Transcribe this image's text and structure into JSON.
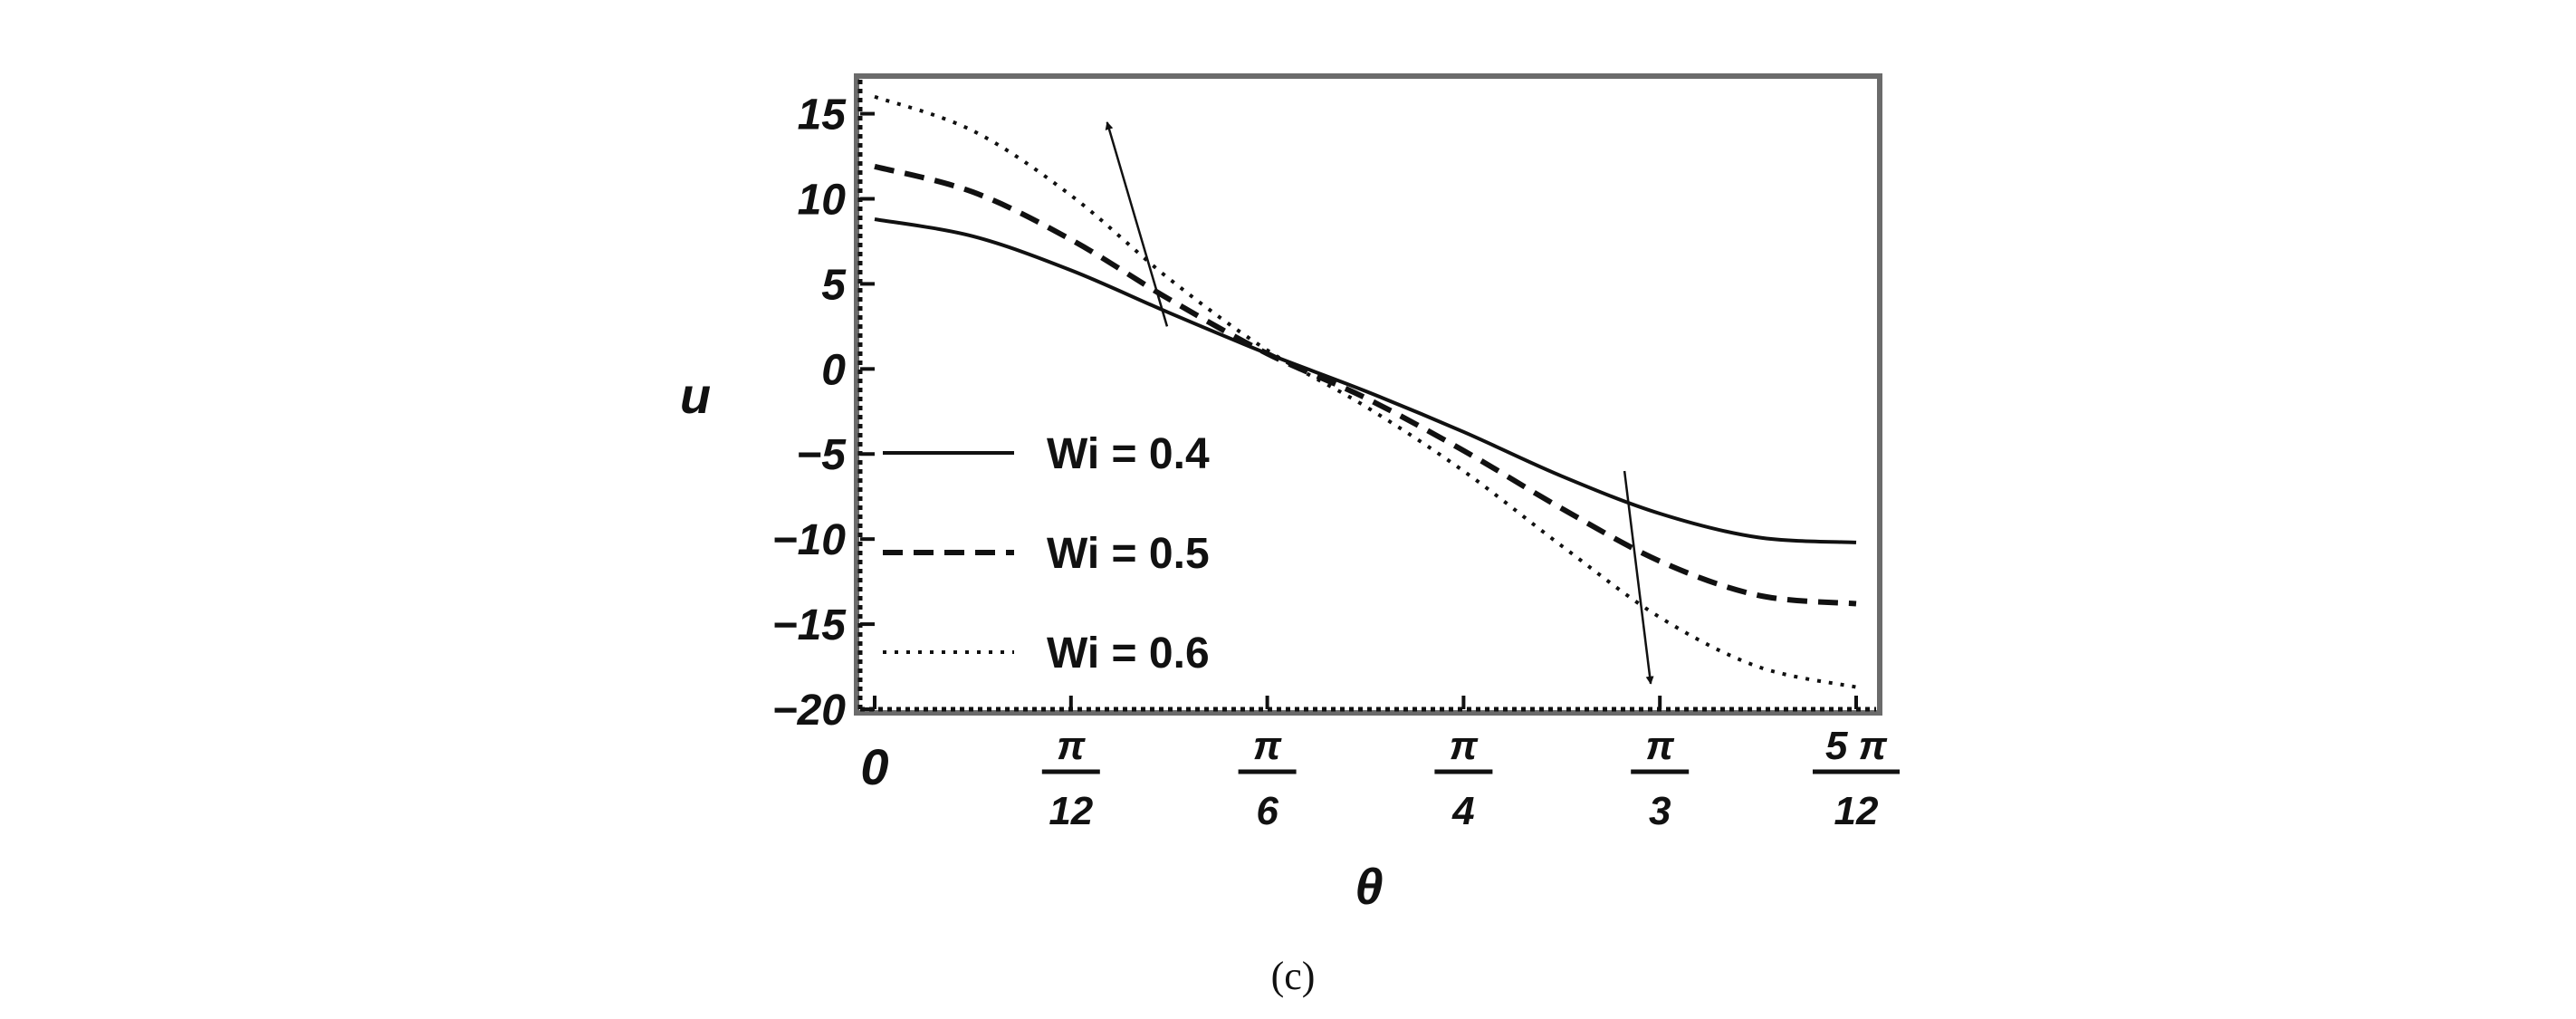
{
  "chart_data": {
    "type": "line",
    "xlabel": "θ",
    "ylabel": "u",
    "xlim": [
      0,
      1.309
    ],
    "ylim": [
      -20,
      17
    ],
    "grid": false,
    "legend_placement": "left",
    "yticks": [
      15,
      10,
      5,
      0,
      -5,
      -10,
      -15,
      -20
    ],
    "xticks": [
      {
        "value": 0,
        "num": "0",
        "den": ""
      },
      {
        "value": 0.2618,
        "num": "π",
        "den": "12"
      },
      {
        "value": 0.5236,
        "num": "π",
        "den": "6"
      },
      {
        "value": 0.7854,
        "num": "π",
        "den": "4"
      },
      {
        "value": 1.0472,
        "num": "π",
        "den": "3"
      },
      {
        "value": 1.309,
        "num": "5 π",
        "den": "12"
      }
    ],
    "x": [
      0,
      0.1309,
      0.2618,
      0.3927,
      0.5236,
      0.6545,
      0.7854,
      0.9163,
      1.0472,
      1.1781,
      1.309
    ],
    "series": [
      {
        "name": "Wi = 0.4",
        "style": "solid",
        "values": [
          8.8,
          7.8,
          5.8,
          3.3,
          0.9,
          -1.3,
          -3.7,
          -6.3,
          -8.5,
          -9.9,
          -10.2
        ]
      },
      {
        "name": "Wi = 0.5",
        "style": "dashed",
        "values": [
          11.9,
          10.4,
          7.6,
          4.1,
          0.9,
          -1.7,
          -4.8,
          -8.2,
          -11.3,
          -13.3,
          -13.8
        ]
      },
      {
        "name": "Wi = 0.6",
        "style": "dotted",
        "values": [
          16.0,
          14.0,
          10.2,
          5.3,
          1.1,
          -2.2,
          -6.0,
          -10.4,
          -14.6,
          -17.5,
          -18.7
        ]
      }
    ],
    "annotations": [
      {
        "type": "arrow",
        "from": [
          0.39,
          2.5
        ],
        "to": [
          0.31,
          14.5
        ]
      },
      {
        "type": "arrow",
        "from": [
          1.0,
          -6.0
        ],
        "to": [
          1.035,
          -18.5
        ]
      }
    ]
  },
  "caption": "(c)"
}
